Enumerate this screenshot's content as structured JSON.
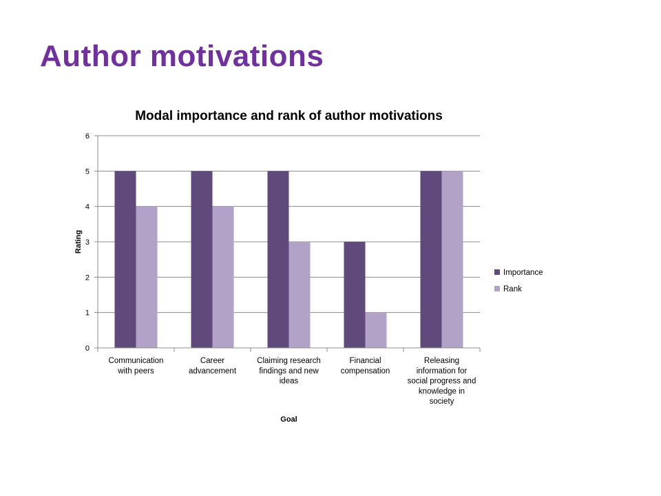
{
  "slide": {
    "title": "Author motivations"
  },
  "chart_data": {
    "type": "bar",
    "title": "Modal importance and rank of author motivations",
    "xlabel": "Goal",
    "ylabel": "Rating",
    "ylim": [
      0,
      6
    ],
    "yticks": [
      0,
      1,
      2,
      3,
      4,
      5,
      6
    ],
    "grid": true,
    "legend_position": "right",
    "categories": [
      "Communication with peers",
      "Career advancement",
      "Claiming research findings and new ideas",
      "Financial compensation",
      "Releasing information for social progress and knowledge in society"
    ],
    "category_lines": [
      [
        "Communication",
        "with peers"
      ],
      [
        "Career",
        "advancement"
      ],
      [
        "Claiming research",
        "findings and new",
        "ideas"
      ],
      [
        "Financial",
        "compensation"
      ],
      [
        "Releasing",
        "information for",
        "social progress and",
        "knowledge in",
        "society"
      ]
    ],
    "series": [
      {
        "name": "Importance",
        "color": "#604a7b",
        "values": [
          5,
          5,
          5,
          3,
          5
        ]
      },
      {
        "name": "Rank",
        "color": "#b3a2c7",
        "values": [
          4,
          4,
          3,
          1,
          5
        ]
      }
    ]
  }
}
